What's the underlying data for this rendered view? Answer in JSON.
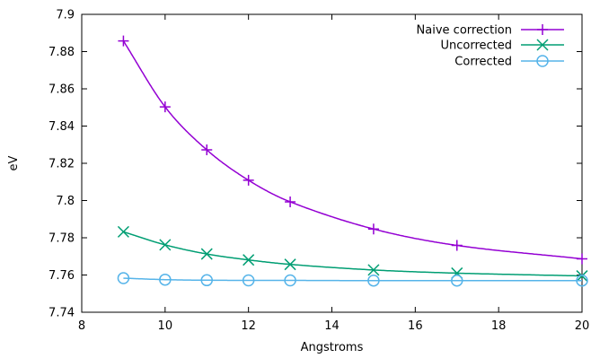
{
  "chart_data": {
    "type": "line",
    "xlabel": "Angstroms",
    "ylabel": "eV",
    "xlim": [
      8,
      20
    ],
    "ylim": [
      7.74,
      7.9
    ],
    "xticks": [
      8,
      10,
      12,
      14,
      16,
      18,
      20
    ],
    "yticks": [
      7.74,
      7.76,
      7.78,
      7.8,
      7.82,
      7.84,
      7.86,
      7.88,
      7.9
    ],
    "ytick_labels": [
      "7.74",
      "7.76",
      "7.78",
      "7.8",
      "7.82",
      "7.84",
      "7.86",
      "7.88",
      "7.9"
    ],
    "grid": false,
    "legend_position": "top-right",
    "series": [
      {
        "name": "Naive correction",
        "color": "#9400d3",
        "marker": "plus",
        "x": [
          9,
          10,
          11,
          12,
          13,
          15,
          17,
          20
        ],
        "y": [
          7.8857,
          7.8503,
          7.8272,
          7.8109,
          7.7993,
          7.7847,
          7.7759,
          7.7687
        ]
      },
      {
        "name": "Uncorrected",
        "color": "#009e73",
        "marker": "cross",
        "x": [
          9,
          10,
          11,
          12,
          13,
          15,
          17,
          20
        ],
        "y": [
          7.7832,
          7.7762,
          7.7713,
          7.7681,
          7.7657,
          7.7627,
          7.761,
          7.7595
        ]
      },
      {
        "name": "Corrected",
        "color": "#56b4e9",
        "marker": "circle",
        "x": [
          9,
          10,
          11,
          12,
          13,
          15,
          17,
          20
        ],
        "y": [
          7.7583,
          7.7575,
          7.7572,
          7.7571,
          7.7571,
          7.757,
          7.757,
          7.757
        ]
      }
    ]
  }
}
